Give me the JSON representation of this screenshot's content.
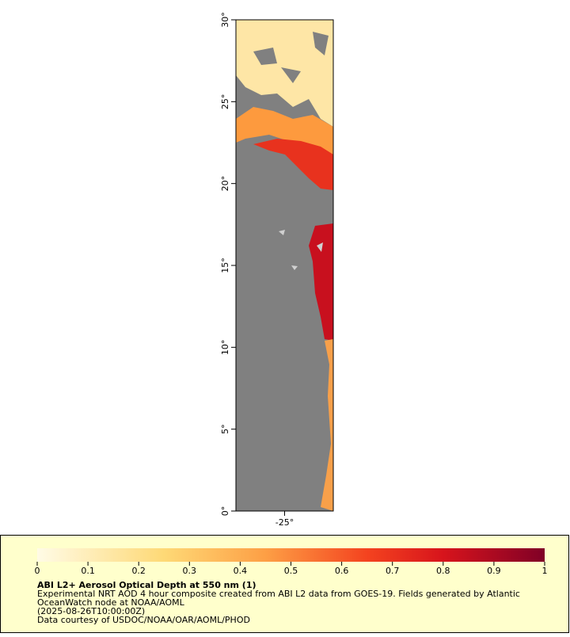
{
  "map": {
    "lat_axis": {
      "ylim": [
        0,
        30
      ],
      "yticks": [
        {
          "value": 0,
          "label": "0°"
        },
        {
          "value": 5,
          "label": "5°"
        },
        {
          "value": 10,
          "label": "10°"
        },
        {
          "value": 15,
          "label": "15°"
        },
        {
          "value": 20,
          "label": "20°"
        },
        {
          "value": 25,
          "label": "25°"
        },
        {
          "value": 30,
          "label": "30°"
        }
      ]
    },
    "lon_axis": {
      "xlim": [
        -28,
        -22
      ],
      "xticks": [
        {
          "value": -25,
          "label": "-25°"
        }
      ]
    },
    "colorbar": {
      "range": [
        0,
        1
      ],
      "ticks": [
        0,
        0.1,
        0.2,
        0.3,
        0.4,
        0.5,
        0.6,
        0.7,
        0.8,
        0.9,
        1
      ]
    },
    "title": "ABI L2+ Aerosol Optical Depth at 550 nm (1)",
    "description": [
      "Experimental NRT AOD 4 hour composite created from ABI L2 data from GOES-19. Fields generated by Atlantic",
      "OceanWatch node at NOAA/AOML",
      "(2025-08-26T10:00:00Z)",
      "Data courtesy of USDOC/NOAA/OAR/AOML/PHOD"
    ]
  }
}
